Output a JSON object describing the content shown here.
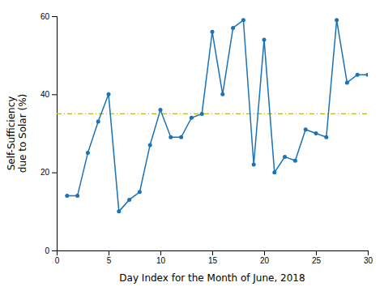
{
  "chart_data": {
    "type": "line",
    "x": [
      1,
      2,
      3,
      4,
      5,
      6,
      7,
      8,
      9,
      10,
      11,
      12,
      13,
      14,
      15,
      16,
      17,
      18,
      19,
      20,
      21,
      22,
      23,
      24,
      25,
      26,
      27,
      28,
      29,
      30
    ],
    "values": [
      14,
      14,
      25,
      33,
      40,
      10,
      13,
      15,
      27,
      36,
      29,
      29,
      34,
      35,
      56,
      40,
      57,
      59,
      22,
      54,
      20,
      24,
      23,
      31,
      30,
      29,
      59,
      43,
      45,
      45
    ],
    "color": "#1a72b8",
    "marker": "circle",
    "line_style": "solid",
    "hline": {
      "y": 35,
      "color": "#b8b820",
      "line_style": "dashdot"
    },
    "xlabel": "Day Index for the Month of June, 2018",
    "ylabel": "Self-Sufficiency\ndue to Solar (%)",
    "xlim": [
      0,
      30
    ],
    "ylim": [
      0,
      60
    ],
    "xticks": [
      0,
      5,
      10,
      15,
      20,
      25,
      30
    ],
    "yticks": [
      0,
      20,
      40,
      60
    ],
    "grid": false
  }
}
